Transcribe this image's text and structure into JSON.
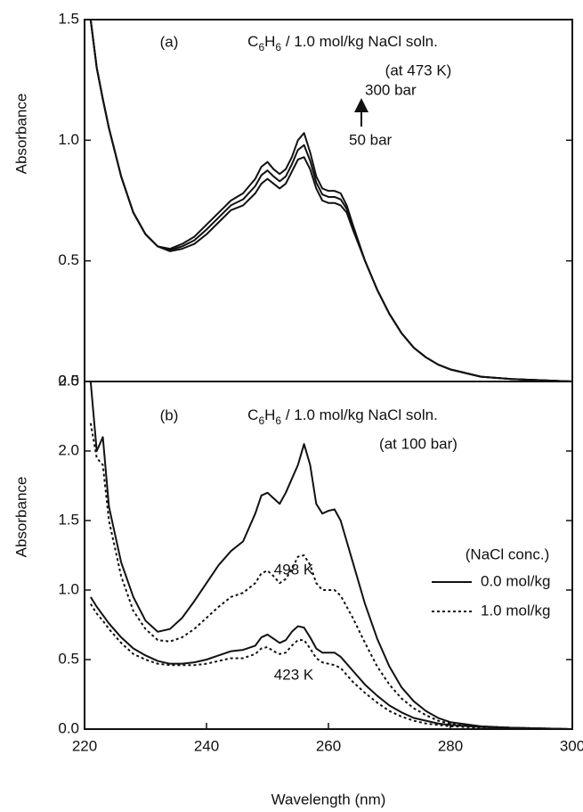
{
  "chart_data": [
    {
      "type": "line",
      "panel_label": "(a)",
      "title": [
        "C",
        "6",
        "H",
        "6",
        " / 1.0 mol/kg NaCl soln."
      ],
      "subtitle": "(at 473 K)",
      "annotations": [
        "300 bar",
        "50 bar"
      ],
      "y_label": "Absorbance",
      "xlim": [
        220,
        300
      ],
      "ylim": [
        0,
        1.5
      ],
      "yticks": [
        {
          "value": 0,
          "label": "0.0"
        },
        0.5,
        {
          "value": 1,
          "label": "1.0"
        },
        1.5
      ],
      "x": [
        221,
        222,
        223,
        224,
        226,
        228,
        230,
        232,
        234,
        236,
        238,
        240,
        242,
        244,
        246,
        248,
        249,
        250,
        251,
        252,
        253,
        254,
        255,
        256,
        257,
        258,
        259,
        260,
        261,
        262,
        263,
        264,
        266,
        268,
        270,
        272,
        274,
        276,
        278,
        280,
        285,
        290,
        295,
        300
      ],
      "series": [
        {
          "color": "#111111",
          "dash": "solid",
          "values": [
            1.5,
            1.3,
            1.17,
            1.05,
            0.85,
            0.7,
            0.61,
            0.56,
            0.55,
            0.57,
            0.6,
            0.65,
            0.7,
            0.75,
            0.78,
            0.84,
            0.89,
            0.91,
            0.88,
            0.86,
            0.88,
            0.93,
            1.0,
            1.03,
            0.95,
            0.85,
            0.8,
            0.79,
            0.79,
            0.78,
            0.73,
            0.65,
            0.5,
            0.38,
            0.28,
            0.2,
            0.14,
            0.1,
            0.07,
            0.05,
            0.02,
            0.01,
            0.005,
            0
          ]
        },
        {
          "color": "#111111",
          "dash": "solid",
          "values": [
            1.5,
            1.3,
            1.17,
            1.05,
            0.85,
            0.7,
            0.61,
            0.56,
            0.545,
            0.56,
            0.585,
            0.63,
            0.68,
            0.73,
            0.755,
            0.81,
            0.855,
            0.875,
            0.85,
            0.83,
            0.85,
            0.9,
            0.96,
            0.98,
            0.915,
            0.825,
            0.775,
            0.765,
            0.765,
            0.755,
            0.715,
            0.64,
            0.5,
            0.38,
            0.28,
            0.2,
            0.14,
            0.1,
            0.07,
            0.05,
            0.02,
            0.01,
            0.005,
            0
          ]
        },
        {
          "color": "#111111",
          "dash": "solid",
          "values": [
            1.5,
            1.3,
            1.17,
            1.05,
            0.85,
            0.7,
            0.61,
            0.56,
            0.54,
            0.55,
            0.57,
            0.61,
            0.66,
            0.71,
            0.73,
            0.78,
            0.82,
            0.84,
            0.82,
            0.8,
            0.82,
            0.87,
            0.92,
            0.93,
            0.88,
            0.8,
            0.75,
            0.74,
            0.74,
            0.73,
            0.7,
            0.63,
            0.5,
            0.38,
            0.28,
            0.2,
            0.14,
            0.1,
            0.07,
            0.05,
            0.02,
            0.01,
            0.005,
            0
          ]
        }
      ]
    },
    {
      "type": "line",
      "panel_label": "(b)",
      "title": [
        "C",
        "6",
        "H",
        "6",
        " / 1.0 mol/kg NaCl soln."
      ],
      "subtitle": "(at 100 bar)",
      "annotations": [
        "498 K",
        "423 K"
      ],
      "y_label": "Absorbance",
      "x_label": "Wavelength (nm)",
      "legend": {
        "title": "(NaCl conc.)",
        "entries": [
          {
            "label": "0.0 mol/kg",
            "dash": "solid"
          },
          {
            "label": "1.0 mol/kg",
            "dash": "dotted"
          }
        ]
      },
      "xlim": [
        220,
        300
      ],
      "xticks": [
        220,
        240,
        260,
        280,
        300
      ],
      "ylim": [
        0,
        2.5
      ],
      "yticks": [
        {
          "value": 0,
          "label": "0.0"
        },
        0.5,
        {
          "value": 1,
          "label": "1.0"
        },
        1.5,
        {
          "value": 2,
          "label": "2.0"
        },
        2.5
      ],
      "x": [
        221,
        222,
        223,
        224,
        226,
        228,
        230,
        232,
        234,
        236,
        238,
        240,
        242,
        244,
        246,
        248,
        249,
        250,
        251,
        252,
        253,
        254,
        255,
        256,
        257,
        258,
        259,
        260,
        261,
        262,
        263,
        264,
        266,
        268,
        270,
        272,
        274,
        276,
        278,
        280,
        285,
        290,
        295,
        300
      ],
      "series": [
        {
          "color": "#111111",
          "dash": "solid",
          "values": [
            2.5,
            2.0,
            2.1,
            1.6,
            1.2,
            0.95,
            0.78,
            0.7,
            0.72,
            0.8,
            0.92,
            1.05,
            1.18,
            1.28,
            1.35,
            1.55,
            1.68,
            1.7,
            1.66,
            1.62,
            1.7,
            1.8,
            1.9,
            2.05,
            1.9,
            1.62,
            1.55,
            1.57,
            1.58,
            1.5,
            1.35,
            1.2,
            0.9,
            0.65,
            0.45,
            0.3,
            0.2,
            0.13,
            0.08,
            0.05,
            0.02,
            0.01,
            0.005,
            0
          ]
        },
        {
          "color": "#111111",
          "dash": "dotted",
          "values": [
            2.2,
            1.95,
            1.9,
            1.5,
            1.1,
            0.85,
            0.72,
            0.64,
            0.63,
            0.66,
            0.72,
            0.8,
            0.88,
            0.95,
            0.98,
            1.05,
            1.12,
            1.14,
            1.1,
            1.05,
            1.08,
            1.15,
            1.24,
            1.25,
            1.18,
            1.05,
            1.0,
            1.0,
            1.0,
            0.96,
            0.88,
            0.8,
            0.62,
            0.45,
            0.32,
            0.22,
            0.15,
            0.1,
            0.06,
            0.04,
            0.02,
            0.01,
            0.005,
            0
          ]
        },
        {
          "color": "#111111",
          "dash": "solid",
          "values": [
            0.95,
            0.88,
            0.82,
            0.76,
            0.66,
            0.58,
            0.53,
            0.49,
            0.47,
            0.47,
            0.48,
            0.5,
            0.53,
            0.56,
            0.57,
            0.6,
            0.66,
            0.68,
            0.65,
            0.62,
            0.64,
            0.7,
            0.74,
            0.73,
            0.66,
            0.58,
            0.55,
            0.55,
            0.55,
            0.52,
            0.47,
            0.42,
            0.32,
            0.24,
            0.17,
            0.12,
            0.08,
            0.06,
            0.04,
            0.03,
            0.015,
            0.01,
            0.005,
            0
          ]
        },
        {
          "color": "#111111",
          "dash": "dotted",
          "values": [
            0.9,
            0.83,
            0.78,
            0.72,
            0.62,
            0.54,
            0.5,
            0.47,
            0.46,
            0.46,
            0.46,
            0.47,
            0.49,
            0.51,
            0.51,
            0.54,
            0.58,
            0.59,
            0.56,
            0.54,
            0.55,
            0.6,
            0.64,
            0.64,
            0.58,
            0.51,
            0.48,
            0.47,
            0.46,
            0.44,
            0.39,
            0.34,
            0.26,
            0.19,
            0.13,
            0.09,
            0.06,
            0.04,
            0.03,
            0.02,
            0.01,
            0.005,
            0.003,
            0
          ]
        }
      ]
    }
  ]
}
